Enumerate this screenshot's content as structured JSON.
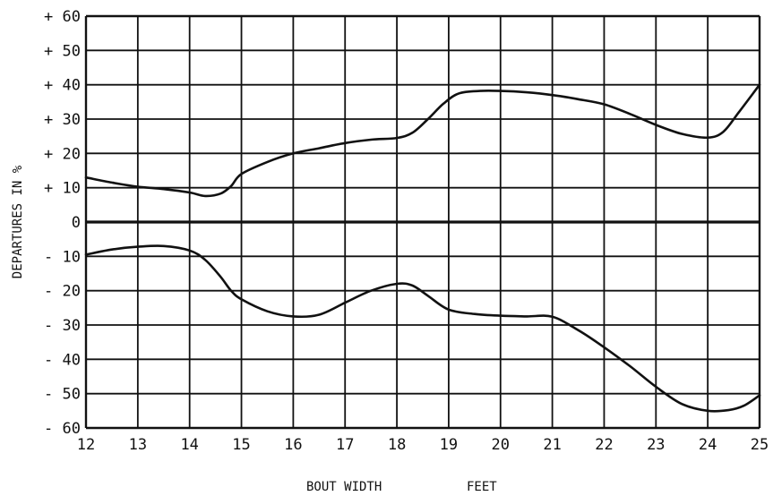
{
  "chart_data": {
    "type": "line",
    "ylabel": "DEPARTURES IN %",
    "xlabel_parts": [
      "BOUT WIDTH",
      "FEET"
    ],
    "xlim": [
      12,
      25
    ],
    "ylim": [
      -60,
      60
    ],
    "x_ticks": [
      "12",
      "13",
      "14",
      "15",
      "16",
      "17",
      "18",
      "19",
      "20",
      "21",
      "22",
      "23",
      "24",
      "25"
    ],
    "y_ticks": [
      "+ 60",
      "+ 50",
      "+ 40",
      "+ 30",
      "+ 20",
      "+ 10",
      "0",
      "- 10",
      "- 20",
      "- 30",
      "- 40",
      "- 50",
      "- 60"
    ],
    "grid": true,
    "series": [
      {
        "x": [
          12,
          12.5,
          13,
          13.5,
          14,
          14.3,
          14.6,
          14.8,
          15,
          15.5,
          16,
          16.5,
          17,
          17.5,
          18,
          18.3,
          18.6,
          18.9,
          19.2,
          19.6,
          20,
          20.5,
          21,
          21.5,
          22,
          22.5,
          23,
          23.5,
          24,
          24.3,
          24.6,
          25
        ],
        "y": [
          13,
          11.5,
          10.3,
          9.6,
          8.6,
          7.6,
          8.3,
          10.5,
          14,
          17.5,
          20,
          21.5,
          23,
          24,
          24.5,
          26,
          30,
          34.5,
          37.5,
          38.2,
          38.2,
          37.8,
          37,
          35.8,
          34.3,
          31.5,
          28.3,
          25.7,
          24.6,
          26.3,
          32,
          40
        ]
      },
      {
        "x": [
          12,
          12.5,
          13,
          13.5,
          14,
          14.3,
          14.6,
          14.8,
          15,
          15.5,
          16,
          16.5,
          17,
          17.5,
          18,
          18.3,
          18.6,
          19,
          19.5,
          20,
          20.5,
          21,
          21.5,
          22,
          22.5,
          23,
          23.5,
          24,
          24.4,
          24.7,
          25
        ],
        "y": [
          -9.5,
          -8,
          -7.2,
          -7,
          -8.3,
          -11,
          -16,
          -20,
          -22.5,
          -26,
          -27.5,
          -27,
          -23.5,
          -20,
          -18,
          -18.5,
          -21.5,
          -25.5,
          -26.8,
          -27.3,
          -27.5,
          -27.6,
          -31.5,
          -36.5,
          -42,
          -48,
          -53,
          -55,
          -54.8,
          -53.5,
          -50.5
        ]
      }
    ]
  }
}
